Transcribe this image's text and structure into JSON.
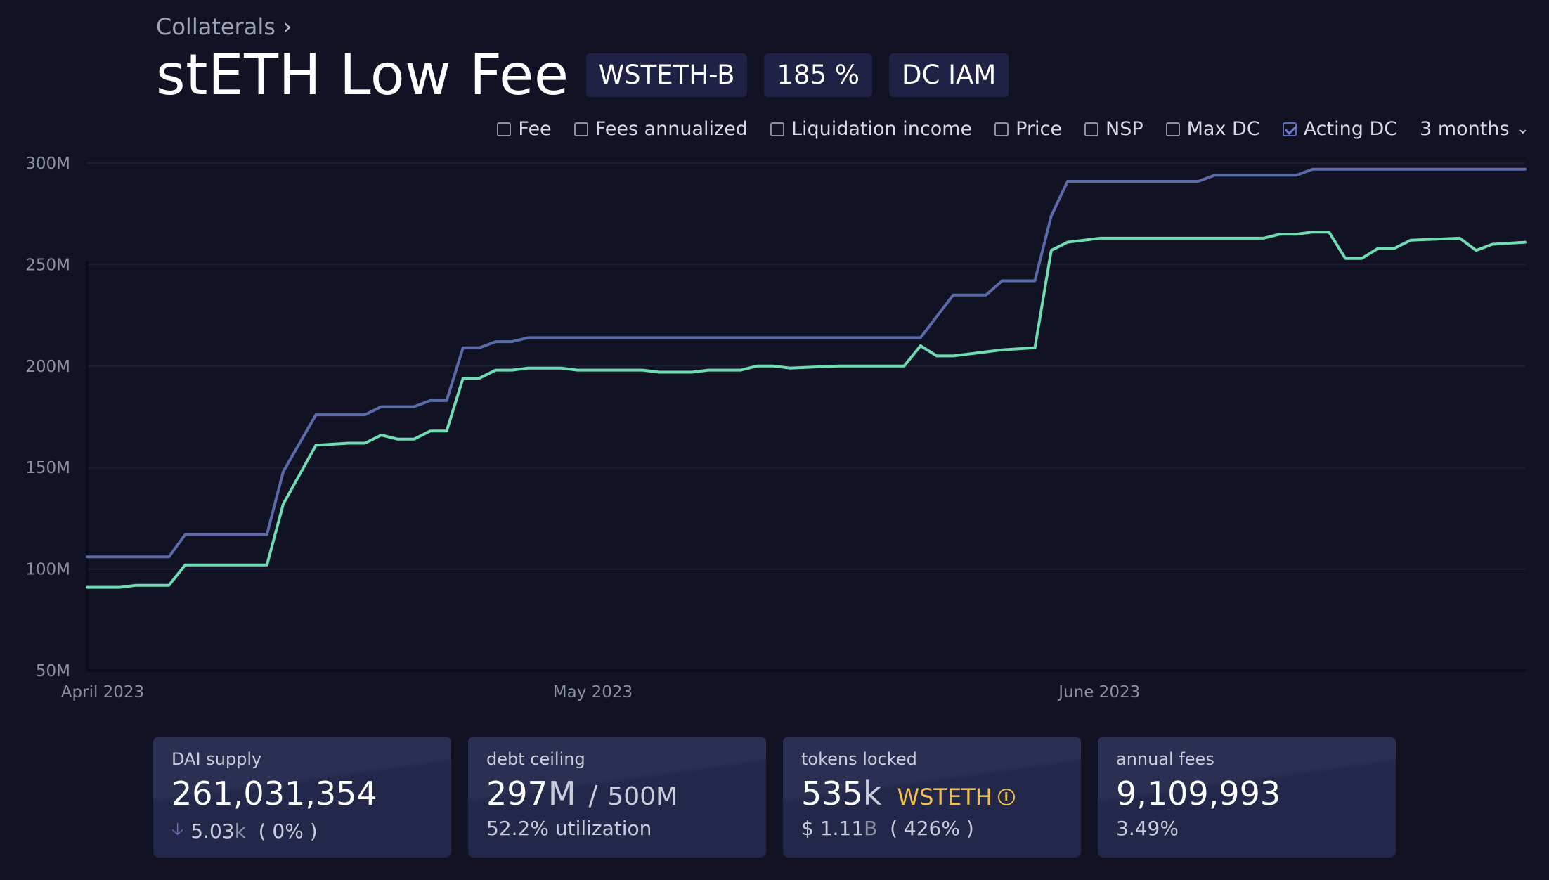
{
  "breadcrumb": {
    "label": "Collaterals"
  },
  "header": {
    "title": "stETH Low Fee",
    "tags": [
      "WSTETH-B",
      "185 %",
      "DC IAM"
    ]
  },
  "toolbar": {
    "toggles": [
      {
        "label": "Fee",
        "checked": false
      },
      {
        "label": "Fees annualized",
        "checked": false
      },
      {
        "label": "Liquidation income",
        "checked": false
      },
      {
        "label": "Price",
        "checked": false
      },
      {
        "label": "NSP",
        "checked": false
      },
      {
        "label": "Max DC",
        "checked": false
      },
      {
        "label": "Acting DC",
        "checked": true
      }
    ],
    "range": "3 months"
  },
  "chart_data": {
    "type": "line",
    "grid": true,
    "y_ticks": [
      "300M",
      "250M",
      "200M",
      "150M",
      "100M",
      "50M"
    ],
    "y_tick_values": [
      300,
      250,
      200,
      150,
      100,
      50
    ],
    "x_ticks": [
      "April 2023",
      "May 2023",
      "June 2023"
    ],
    "x_tick_values": [
      "2023-04-01",
      "2023-05-01",
      "2023-06-01"
    ],
    "ylim": [
      50,
      300
    ],
    "xlim": [
      "2023-04-01",
      "2023-06-28"
    ],
    "y_unit": "M",
    "colors": {
      "acting_dc": "#5b6aa8",
      "supply": "#6fdcb3"
    },
    "series": [
      {
        "key": "acting_dc",
        "points": [
          [
            "2023-04-01",
            106
          ],
          [
            "2023-04-05",
            106
          ],
          [
            "2023-04-06",
            106
          ],
          [
            "2023-04-07",
            117
          ],
          [
            "2023-04-10",
            117
          ],
          [
            "2023-04-12",
            117
          ],
          [
            "2023-04-13",
            148
          ],
          [
            "2023-04-15",
            176
          ],
          [
            "2023-04-17",
            176
          ],
          [
            "2023-04-18",
            176
          ],
          [
            "2023-04-19",
            180
          ],
          [
            "2023-04-21",
            180
          ],
          [
            "2023-04-22",
            183
          ],
          [
            "2023-04-23",
            183
          ],
          [
            "2023-04-24",
            209
          ],
          [
            "2023-04-25",
            209
          ],
          [
            "2023-04-26",
            212
          ],
          [
            "2023-04-27",
            212
          ],
          [
            "2023-04-28",
            214
          ],
          [
            "2023-05-10",
            214
          ],
          [
            "2023-05-21",
            214
          ],
          [
            "2023-05-22",
            214
          ],
          [
            "2023-05-24",
            235
          ],
          [
            "2023-05-26",
            235
          ],
          [
            "2023-05-27",
            242
          ],
          [
            "2023-05-29",
            242
          ],
          [
            "2023-05-30",
            274
          ],
          [
            "2023-05-31",
            291
          ],
          [
            "2023-06-08",
            291
          ],
          [
            "2023-06-09",
            294
          ],
          [
            "2023-06-14",
            294
          ],
          [
            "2023-06-15",
            297
          ],
          [
            "2023-06-28",
            297
          ]
        ]
      },
      {
        "key": "supply",
        "points": [
          [
            "2023-04-01",
            91
          ],
          [
            "2023-04-03",
            91
          ],
          [
            "2023-04-04",
            92
          ],
          [
            "2023-04-06",
            92
          ],
          [
            "2023-04-07",
            102
          ],
          [
            "2023-04-10",
            102
          ],
          [
            "2023-04-12",
            102
          ],
          [
            "2023-04-13",
            132
          ],
          [
            "2023-04-15",
            161
          ],
          [
            "2023-04-17",
            162
          ],
          [
            "2023-04-18",
            162
          ],
          [
            "2023-04-19",
            166
          ],
          [
            "2023-04-20",
            164
          ],
          [
            "2023-04-21",
            164
          ],
          [
            "2023-04-22",
            168
          ],
          [
            "2023-04-23",
            168
          ],
          [
            "2023-04-24",
            194
          ],
          [
            "2023-04-25",
            194
          ],
          [
            "2023-04-26",
            198
          ],
          [
            "2023-04-27",
            198
          ],
          [
            "2023-04-28",
            199
          ],
          [
            "2023-04-30",
            199
          ],
          [
            "2023-05-01",
            198
          ],
          [
            "2023-05-05",
            198
          ],
          [
            "2023-05-06",
            197
          ],
          [
            "2023-05-08",
            197
          ],
          [
            "2023-05-09",
            198
          ],
          [
            "2023-05-11",
            198
          ],
          [
            "2023-05-12",
            200
          ],
          [
            "2023-05-13",
            200
          ],
          [
            "2023-05-14",
            199
          ],
          [
            "2023-05-17",
            200
          ],
          [
            "2023-05-21",
            200
          ],
          [
            "2023-05-22",
            210
          ],
          [
            "2023-05-23",
            205
          ],
          [
            "2023-05-24",
            205
          ],
          [
            "2023-05-25",
            206
          ],
          [
            "2023-05-27",
            208
          ],
          [
            "2023-05-29",
            209
          ],
          [
            "2023-05-30",
            257
          ],
          [
            "2023-05-31",
            261
          ],
          [
            "2023-06-02",
            263
          ],
          [
            "2023-06-04",
            263
          ],
          [
            "2023-06-06",
            263
          ],
          [
            "2023-06-12",
            263
          ],
          [
            "2023-06-13",
            265
          ],
          [
            "2023-06-14",
            265
          ],
          [
            "2023-06-15",
            266
          ],
          [
            "2023-06-16",
            266
          ],
          [
            "2023-06-17",
            253
          ],
          [
            "2023-06-18",
            253
          ],
          [
            "2023-06-19",
            258
          ],
          [
            "2023-06-20",
            258
          ],
          [
            "2023-06-21",
            262
          ],
          [
            "2023-06-24",
            263
          ],
          [
            "2023-06-25",
            257
          ],
          [
            "2023-06-26",
            260
          ],
          [
            "2023-06-28",
            261
          ]
        ]
      }
    ]
  },
  "cards": [
    {
      "label": "DAI supply",
      "value": "261,031,354",
      "change_value": "5.03",
      "change_unit": "k",
      "change_pct": "( 0% )"
    },
    {
      "label": "debt ceiling",
      "value": "297",
      "value_unit": "M",
      "separator": "/",
      "max_value": "500",
      "max_unit": "M",
      "sub": "52.2% utilization"
    },
    {
      "label": "tokens locked",
      "value": "535",
      "value_unit": "k",
      "token": "WSTETH",
      "usd_value": "$ 1.11",
      "usd_unit": "B",
      "ratio": "( 426% )"
    },
    {
      "label": "annual fees",
      "value": "9,109,993",
      "sub": "3.49%"
    }
  ]
}
